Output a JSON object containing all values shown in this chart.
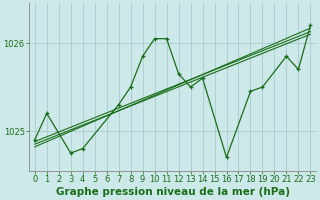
{
  "background_color": "#cce8e8",
  "plot_bg_color": "#cce8e8",
  "grid_color": "#aacccc",
  "line_color": "#1a6e1a",
  "title": "Graphe pression niveau de la mer (hPa)",
  "xticks": [
    0,
    1,
    2,
    3,
    4,
    5,
    6,
    7,
    8,
    9,
    10,
    11,
    12,
    13,
    14,
    15,
    16,
    17,
    18,
    19,
    20,
    21,
    22,
    23
  ],
  "yticks": [
    1025,
    1026
  ],
  "ylim": [
    1024.55,
    1026.45
  ],
  "xlim": [
    -0.5,
    23.5
  ],
  "line1_x": [
    0,
    1,
    3,
    4,
    7,
    8,
    9,
    10,
    11,
    12,
    13,
    14,
    16,
    18,
    19,
    21,
    22,
    23
  ],
  "line1_y": [
    1024.9,
    1025.2,
    1024.75,
    1024.8,
    1025.3,
    1025.5,
    1025.85,
    1026.05,
    1026.05,
    1025.65,
    1025.5,
    1025.6,
    1024.7,
    1025.45,
    1025.5,
    1025.85,
    1025.7,
    1026.2
  ],
  "trend_lines": [
    {
      "x": [
        0,
        23
      ],
      "y": [
        1024.85,
        1026.1
      ]
    },
    {
      "x": [
        0,
        23
      ],
      "y": [
        1024.88,
        1026.13
      ]
    },
    {
      "x": [
        0,
        23
      ],
      "y": [
        1024.82,
        1026.17
      ]
    }
  ],
  "title_fontsize": 7.5,
  "tick_fontsize": 6,
  "figsize": [
    3.2,
    2.0
  ],
  "dpi": 100
}
